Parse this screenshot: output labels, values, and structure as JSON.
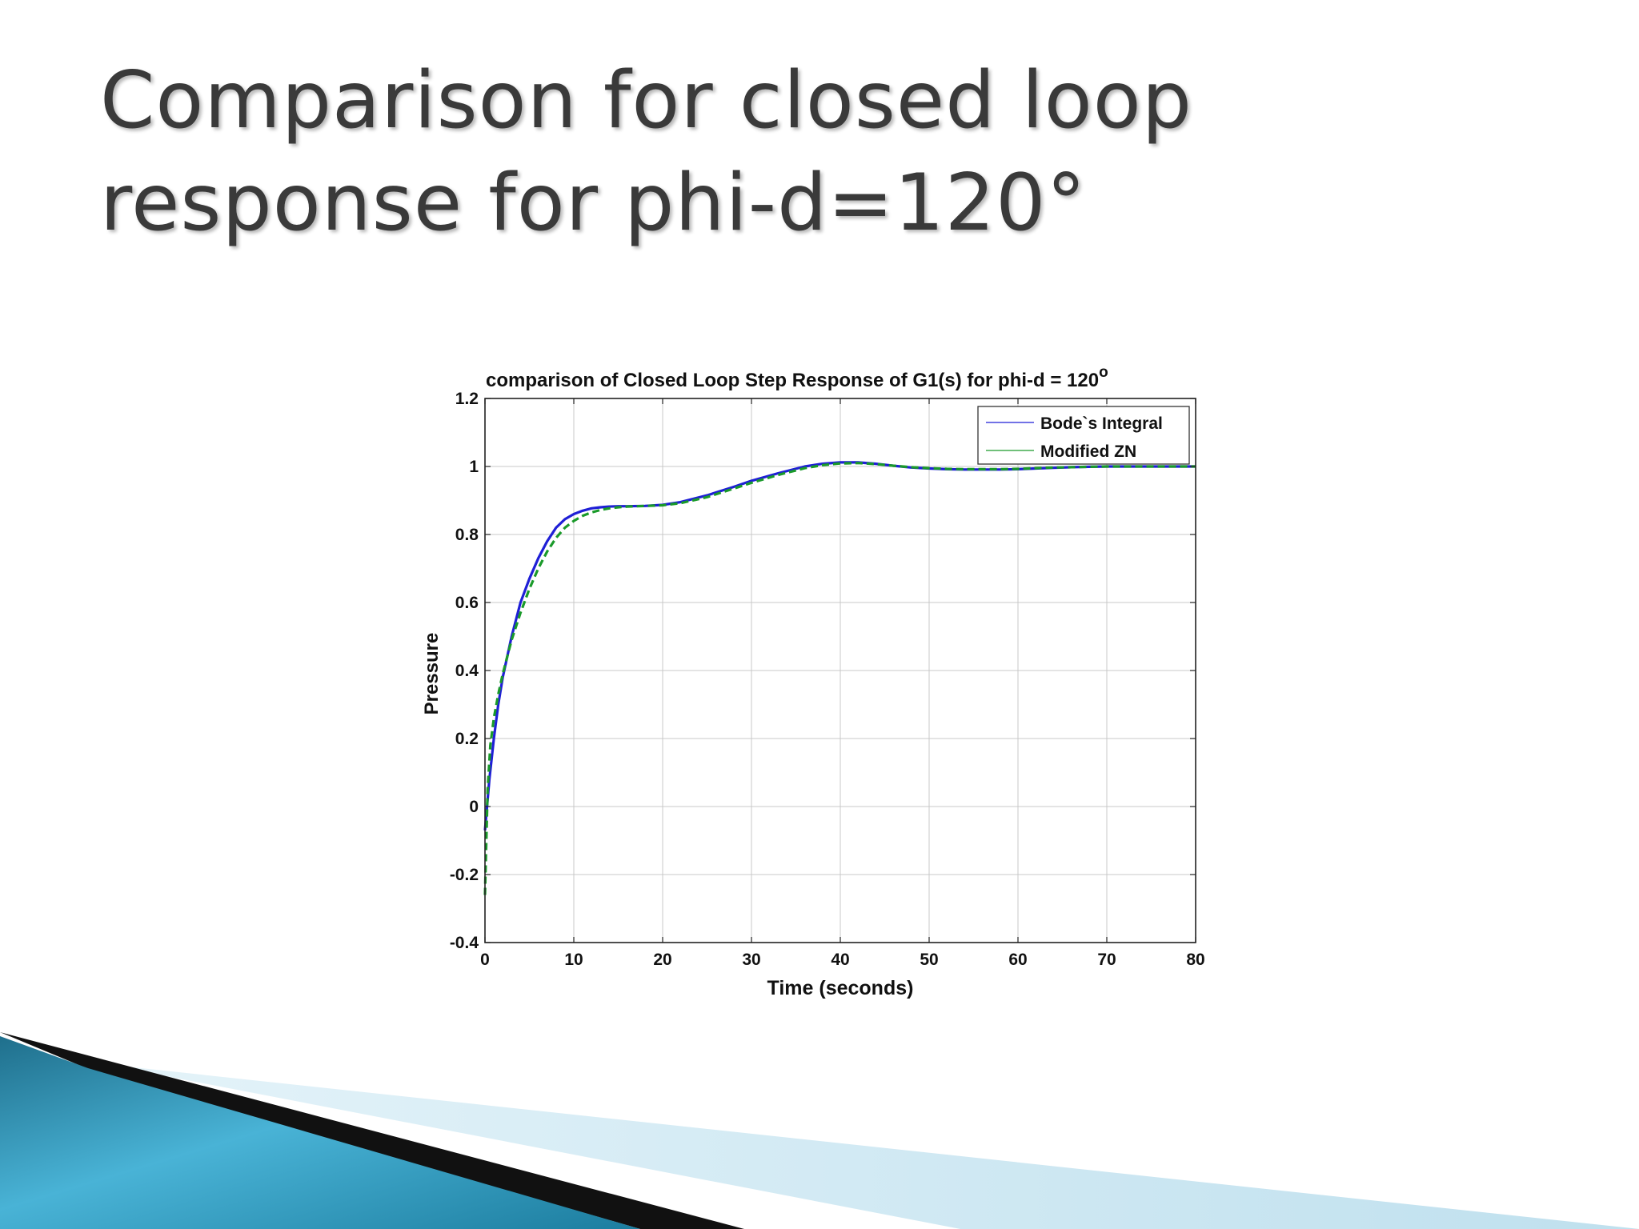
{
  "slide": {
    "title_line1": "Comparison for closed loop",
    "title_line2": "response for phi-d=120°"
  },
  "colors": {
    "title": "#3a3a3a",
    "series_bode": "#1f1fd6",
    "series_zn": "#1a9a2a",
    "grid": "#c8c8c8",
    "decor_dark": "#111111",
    "decor_teal": "#2a8fb0",
    "decor_light": "#bfe3f0"
  },
  "chart_data": {
    "type": "line",
    "title": "comparison of Closed Loop Step Response of G1(s) for phi-d = 120",
    "title_superscript": "o",
    "xlabel": "Time (seconds)",
    "ylabel": "Pressure",
    "xlim": [
      0,
      80
    ],
    "ylim": [
      -0.4,
      1.2
    ],
    "xticks": [
      0,
      10,
      20,
      30,
      40,
      50,
      60,
      70,
      80
    ],
    "xtick_labels": [
      "0",
      "10",
      "20",
      "30",
      "40",
      "50",
      "60",
      "70",
      "80"
    ],
    "yticks": [
      -0.4,
      -0.2,
      0,
      0.2,
      0.4,
      0.6,
      0.8,
      1,
      1.2
    ],
    "ytick_labels": [
      "-0.4",
      "-0.2",
      "0",
      "0.2",
      "0.4",
      "0.6",
      "0.8",
      "1",
      "1.2"
    ],
    "grid": true,
    "legend_position": "top-right",
    "series": [
      {
        "name": "Bode`s Integral",
        "color": "#1f1fd6",
        "style": "solid",
        "x": [
          0,
          0.5,
          1,
          1.5,
          2,
          3,
          4,
          5,
          6,
          7,
          8,
          9,
          10,
          11,
          12,
          13,
          14,
          15,
          16,
          18,
          20,
          22,
          25,
          28,
          30,
          33,
          36,
          38,
          40,
          42,
          44,
          46,
          48,
          50,
          52,
          54,
          56,
          58,
          60,
          62,
          64,
          66,
          68,
          70,
          72,
          75,
          78,
          80
        ],
        "y": [
          -0.07,
          0.08,
          0.2,
          0.3,
          0.38,
          0.5,
          0.6,
          0.67,
          0.73,
          0.78,
          0.82,
          0.845,
          0.86,
          0.87,
          0.877,
          0.88,
          0.882,
          0.883,
          0.883,
          0.884,
          0.887,
          0.895,
          0.915,
          0.94,
          0.958,
          0.98,
          1.0,
          1.008,
          1.012,
          1.012,
          1.008,
          1.002,
          0.997,
          0.994,
          0.992,
          0.991,
          0.991,
          0.991,
          0.992,
          0.994,
          0.996,
          0.998,
          0.999,
          1.0,
          1.0,
          1.0,
          1.0,
          1.0
        ]
      },
      {
        "name": "Modified ZN",
        "color": "#1a9a2a",
        "style": "dashed",
        "x": [
          0,
          0.3,
          0.6,
          1,
          1.5,
          2,
          3,
          4,
          5,
          6,
          7,
          8,
          9,
          10,
          11,
          12,
          13,
          14,
          15,
          16,
          18,
          20,
          22,
          25,
          28,
          30,
          33,
          36,
          38,
          40,
          42,
          44,
          46,
          48,
          50,
          52,
          54,
          56,
          58,
          60,
          62,
          64,
          66,
          68,
          70,
          72,
          75,
          78,
          80
        ],
        "y": [
          -0.26,
          0.05,
          0.18,
          0.26,
          0.33,
          0.39,
          0.49,
          0.57,
          0.64,
          0.7,
          0.75,
          0.79,
          0.82,
          0.84,
          0.855,
          0.865,
          0.872,
          0.877,
          0.88,
          0.882,
          0.884,
          0.886,
          0.892,
          0.91,
          0.935,
          0.952,
          0.975,
          0.995,
          1.004,
          1.009,
          1.01,
          1.007,
          1.002,
          0.998,
          0.995,
          0.993,
          0.992,
          0.992,
          0.992,
          0.993,
          0.995,
          0.997,
          0.998,
          0.999,
          1.0,
          1.0,
          1.0,
          1.0,
          1.0
        ]
      }
    ]
  }
}
